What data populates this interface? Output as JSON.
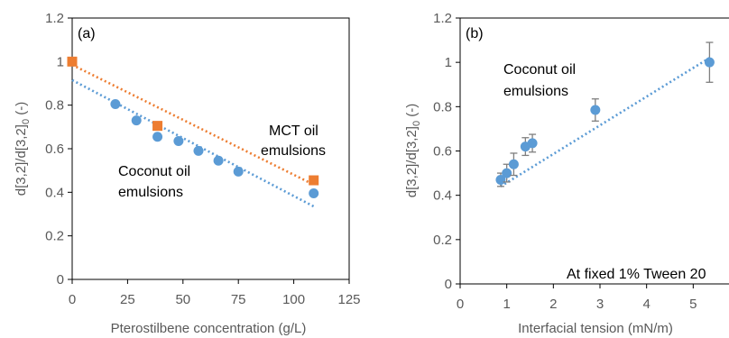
{
  "chart_data": [
    {
      "panel_label": "(a)",
      "type": "scatter",
      "xlabel": "Pterostilbene concentration (g/L)",
      "xlim": [
        0,
        125
      ],
      "xticks": [
        "0",
        "25",
        "50",
        "75",
        "100",
        "125"
      ],
      "ylim": [
        0,
        1.2
      ],
      "yticks": [
        "0",
        "0.2",
        "0.4",
        "0.6",
        "0.8",
        "1",
        "1.2"
      ],
      "grid": false,
      "annotations": [
        "MCT oil",
        "emulsions",
        "Coconut oil",
        "emulsions"
      ],
      "series": [
        {
          "marker": "circle",
          "color": "#5b9bd5",
          "x": [
            0,
            19.5,
            29,
            38.5,
            48,
            57,
            66,
            75,
            109
          ],
          "y": [
            1.0,
            0.805,
            0.73,
            0.655,
            0.635,
            0.59,
            0.545,
            0.495,
            0.395
          ],
          "trendline": {
            "x": [
              0,
              109
            ],
            "y": [
              0.915,
              0.335
            ],
            "color": "#5b9bd5"
          }
        },
        {
          "marker": "square",
          "color": "#ed7d31",
          "x": [
            0,
            38.5,
            109
          ],
          "y": [
            1.0,
            0.705,
            0.455
          ],
          "trendline": {
            "x": [
              0,
              109
            ],
            "y": [
              0.985,
              0.435
            ],
            "color": "#ed7d31"
          }
        }
      ]
    },
    {
      "panel_label": "(b)",
      "type": "scatter",
      "xlabel": "Interfacial tension (mN/m)",
      "ylabel_parts": {
        "main": "d[3,2]/d[3,2]",
        "sub": "0",
        "tail": " (-)"
      },
      "xlim": [
        0,
        6
      ],
      "xticks": [
        "0",
        "1",
        "2",
        "3",
        "4",
        "5",
        "6"
      ],
      "ylim": [
        0,
        1.2
      ],
      "yticks": [
        "0",
        "0.2",
        "0.4",
        "0.6",
        "0.8",
        "1",
        "1.2"
      ],
      "grid": false,
      "annotations": [
        "Coconut oil",
        "emulsions"
      ],
      "note": "At fixed 1% Tween 20",
      "series": [
        {
          "marker": "circle",
          "color": "#5b9bd5",
          "x": [
            0.87,
            1.0,
            1.15,
            1.4,
            1.55,
            2.9,
            5.35
          ],
          "y": [
            0.47,
            0.5,
            0.54,
            0.62,
            0.635,
            0.785,
            1.0
          ],
          "error": [
            0.03,
            0.04,
            0.05,
            0.04,
            0.04,
            0.05,
            0.09
          ],
          "trendline": {
            "x": [
              0.87,
              5.35
            ],
            "y": [
              0.44,
              1.02
            ],
            "color": "#5b9bd5"
          }
        }
      ]
    }
  ],
  "left_ylabel_parts": {
    "main": "d[3,2]/d[3,2]",
    "sub": "0",
    "tail": " (-)"
  }
}
